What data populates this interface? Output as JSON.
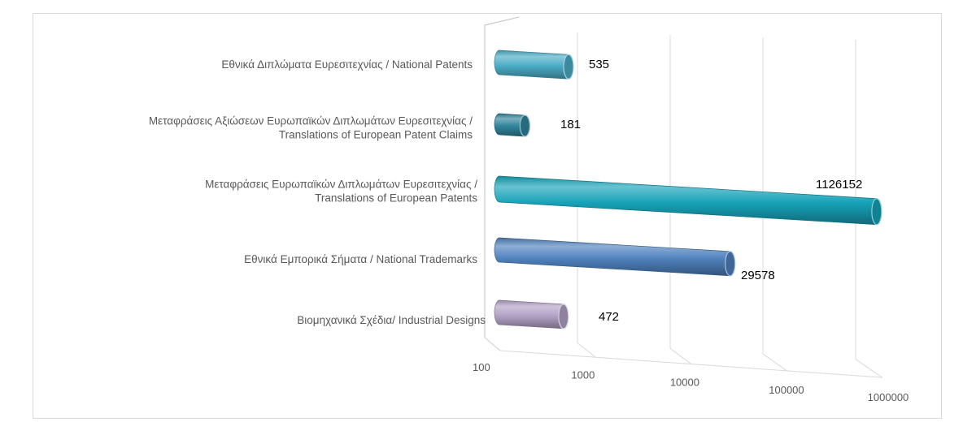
{
  "chart_data": {
    "type": "bar",
    "orientation": "horizontal",
    "style": "3d-cylinder",
    "scale": "log",
    "xlim": [
      100,
      1000000
    ],
    "ticks": [
      "100",
      "1000",
      "10000",
      "100000",
      "1000000"
    ],
    "grid": true,
    "legend": "none",
    "categories": [
      [
        "Εθνικά Διπλώματα Ευρεσιτεχνίας / National Patents"
      ],
      [
        "Μεταφράσεις Αξιώσεων Ευρωπαϊκών Διπλωμάτων Ευρεσιτεχνίας /",
        "Translations of European Patent Claims"
      ],
      [
        "Μεταφράσεις Ευρωπαϊκών Διπλωμάτων Ευρεσιτεχνίας /",
        "Translations of European Patents"
      ],
      [
        "Εθνικά Εμπορικά Σήματα / National Trademarks"
      ],
      [
        "Βιομηχανικά Σχέδια/ Industrial Designs"
      ]
    ],
    "values": [
      535,
      181,
      1126152,
      29578,
      472
    ],
    "value_labels": [
      "535",
      "181",
      "1126152",
      "29578",
      "472"
    ],
    "colors": [
      "#4bacc6",
      "#31859c",
      "#17a2b8",
      "#4f81bd",
      "#b3a2c7"
    ]
  }
}
